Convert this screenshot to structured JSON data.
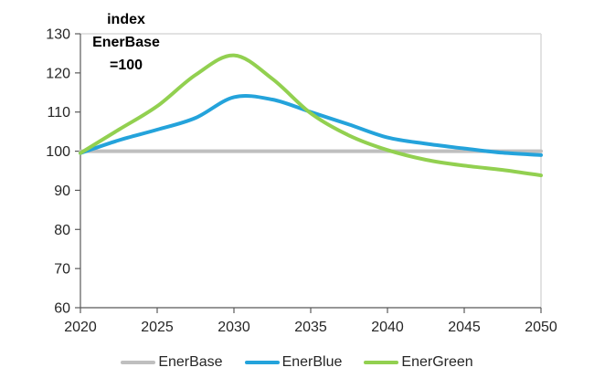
{
  "chart_data": {
    "type": "line",
    "title_annotation": {
      "lines": [
        "index",
        "EnerBase",
        "=100"
      ]
    },
    "x": [
      2020,
      2022.5,
      2025,
      2027.5,
      2030,
      2032.5,
      2035,
      2037.5,
      2040,
      2042.5,
      2045,
      2047.5,
      2050
    ],
    "series": [
      {
        "name": "EnerBase",
        "color": "#BFBFBF",
        "values": [
          100,
          100,
          100,
          100,
          100,
          100,
          100,
          100,
          100,
          100,
          100,
          100,
          100
        ]
      },
      {
        "name": "EnerBlue",
        "color": "#24A3DB",
        "values": [
          99.5,
          102.8,
          105.5,
          108.5,
          113.8,
          113.2,
          110,
          106.8,
          103.5,
          101.9,
          100.7,
          99.6,
          99
        ]
      },
      {
        "name": "EnerGreen",
        "color": "#92D050",
        "values": [
          99.5,
          105.5,
          111.5,
          119.5,
          124.5,
          118.5,
          109.7,
          104,
          100.3,
          97.8,
          96.3,
          95.2,
          93.8
        ]
      }
    ],
    "xlim": [
      2020,
      2050
    ],
    "ylim": [
      60,
      130
    ],
    "x_ticks": [
      2020,
      2025,
      2030,
      2035,
      2040,
      2045,
      2050
    ],
    "y_ticks": [
      60,
      70,
      80,
      90,
      100,
      110,
      120,
      130
    ],
    "grid": false,
    "legend_position": "bottom",
    "xlabel": "",
    "ylabel": ""
  },
  "colors": {
    "axis": "#595959",
    "plot_border": "#D9D9D9",
    "tick_label": "#262626",
    "annotation_text": "#000000",
    "background": "#FFFFFF"
  }
}
